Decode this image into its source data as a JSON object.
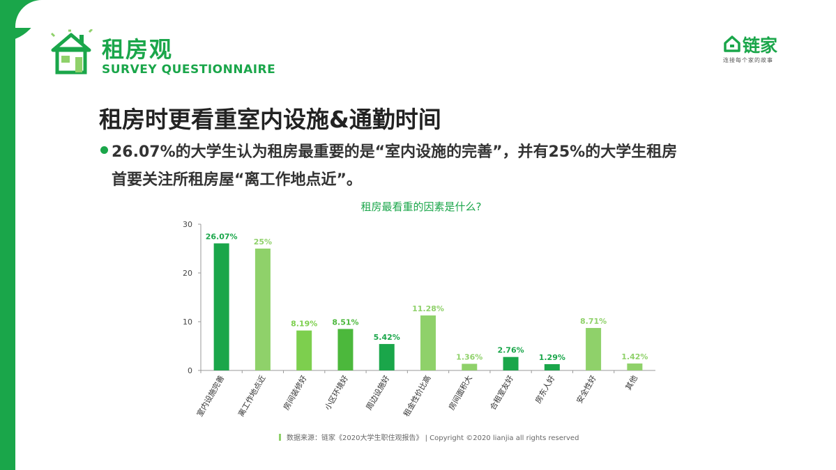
{
  "brand": {
    "title": "租房观",
    "subtitle": "SURVEY QUESTIONNAIRE",
    "icon": "house-icon"
  },
  "logo": {
    "name": "链家",
    "tagline": "连接每个家的故事",
    "icon": "house-outline-icon"
  },
  "headline": "租房时更看重室内设施&通勤时间",
  "bullet": {
    "line1": "26.07%的大学生认为租房最重要的是“室内设施的完善”，并有25%的大学生租房",
    "line2": "首要关注所租房屋“离工作地点近”。"
  },
  "colors": {
    "accent": "#1aa64a",
    "dark_green": "#1aa64a",
    "light_green": "#8fd16a"
  },
  "chart_data": {
    "type": "bar",
    "title": "租房最看重的因素是什么?",
    "categories": [
      "室内设施完善",
      "离工作地点近",
      "房间装修好",
      "小区环境好",
      "周边设施好",
      "租金性价比高",
      "房间面积大",
      "合租室友好",
      "房东人好",
      "安全性好",
      "其他"
    ],
    "values": [
      26.07,
      25,
      8.19,
      8.51,
      5.42,
      11.28,
      1.36,
      2.76,
      1.29,
      8.71,
      1.42
    ],
    "value_labels": [
      "26.07%",
      "25%",
      "8.19%",
      "8.51%",
      "5.42%",
      "11.28%",
      "1.36%",
      "2.76%",
      "1.29%",
      "8.71%",
      "1.42%"
    ],
    "bar_colors": [
      "#1aa64a",
      "#8fd16a",
      "#7dcf4e",
      "#4cb83c",
      "#1aa64a",
      "#8fd16a",
      "#8fd16a",
      "#1aa64a",
      "#1aa64a",
      "#8fd16a",
      "#8fd16a"
    ],
    "yticks": [
      0,
      10,
      20,
      30
    ],
    "ylim": [
      0,
      30
    ],
    "xlabel": "",
    "ylabel": "",
    "grid": false
  },
  "footer": "数据来源：链家《2020大学生职住观报告》 | Copyright ©2020 lianjia all rights reserved"
}
